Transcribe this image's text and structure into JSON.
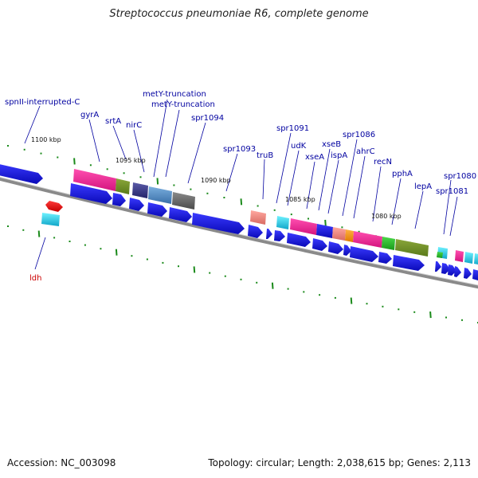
{
  "title": "Streptococcus pneumoniae R6, complete genome",
  "footer": {
    "accession": "Accession: NC_003098",
    "summary": "Topology: circular; Length: 2,038,615 bp; Genes: 2,113"
  },
  "colors": {
    "backbone": "#8a8a8a",
    "tick": "#1a8a1a",
    "cds": "#1a1ae6",
    "label_line": "#0000a0",
    "label_text": "#0000a0",
    "rna_label": "#cc0000"
  },
  "scale_labels": [
    "1100 kbp",
    "1095 kbp",
    "1090 kbp",
    "1085 kbp",
    "1080 kbp"
  ],
  "gene_labels": [
    {
      "id": "spnII",
      "text": "spnII-interrupted-C"
    },
    {
      "id": "gyrA",
      "text": "gyrA"
    },
    {
      "id": "srtA",
      "text": "srtA"
    },
    {
      "id": "nirC",
      "text": "nirC"
    },
    {
      "id": "metY1",
      "text": "metY-truncation"
    },
    {
      "id": "metY2",
      "text": "metY-truncation"
    },
    {
      "id": "spr1094",
      "text": "spr1094"
    },
    {
      "id": "spr1093",
      "text": "spr1093"
    },
    {
      "id": "truB",
      "text": "truB"
    },
    {
      "id": "spr1091",
      "text": "spr1091"
    },
    {
      "id": "udK",
      "text": "udK"
    },
    {
      "id": "xseA",
      "text": "xseA"
    },
    {
      "id": "xseB",
      "text": "xseB"
    },
    {
      "id": "ispA",
      "text": "ispA"
    },
    {
      "id": "spr1086",
      "text": "spr1086"
    },
    {
      "id": "ahrC",
      "text": "ahrC"
    },
    {
      "id": "recN",
      "text": "recN"
    },
    {
      "id": "pphA",
      "text": "pphA"
    },
    {
      "id": "lepA",
      "text": "lepA"
    },
    {
      "id": "spr1080",
      "text": "spr1080"
    },
    {
      "id": "spr1081",
      "text": "spr1081"
    },
    {
      "id": "ldh",
      "text": "ldh"
    }
  ]
}
